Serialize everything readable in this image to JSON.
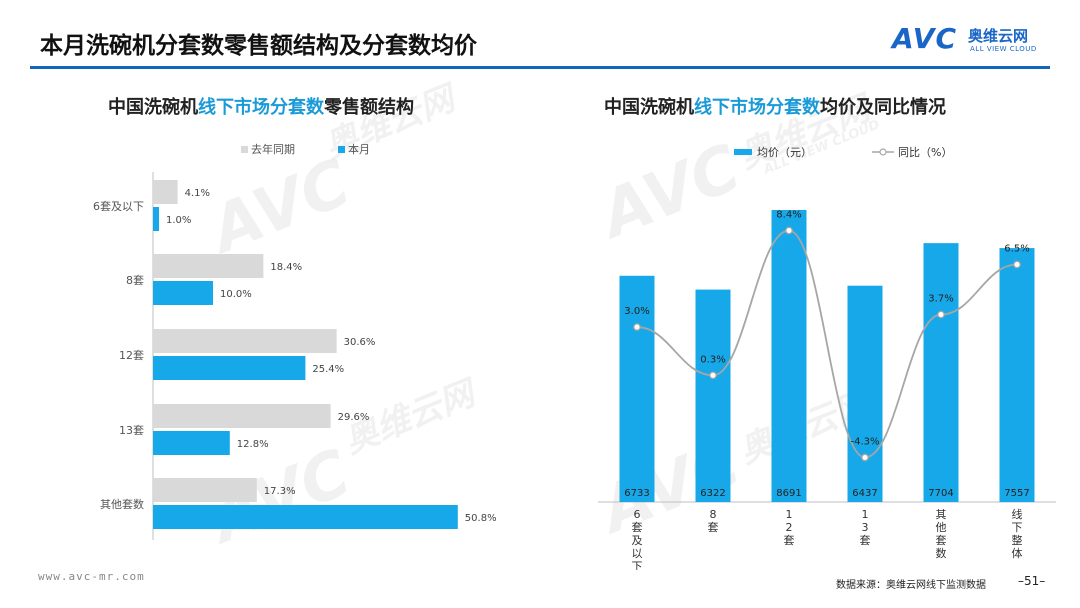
{
  "page": {
    "title": "本月洗碗机分套数零售额结构及分套数均价",
    "footer_url": "www.avc-mr.com",
    "footer_source": "数据来源：奥维云网线下监测数据",
    "page_number": "–51–"
  },
  "logo": {
    "mark": "AVC",
    "name_cn": "奥维云网",
    "name_en": "ALL VIEW CLOUD"
  },
  "watermark": {
    "mark": "AVC",
    "name_cn": "奥维云网",
    "name_en": "ALL VIEW CLOUD"
  },
  "left_title": {
    "part1": "中国洗碗机",
    "part2": "线下市场分套数",
    "part3": "零售额结构"
  },
  "right_title": {
    "part1": "中国洗碗机",
    "part2": "线下市场分套数",
    "part3": "均价及同比情况"
  },
  "colors": {
    "blue": "#16a8e8",
    "gray": "#d9d9d9",
    "line": "#a6a6a6",
    "accent": "#1565c0"
  },
  "chart_data": [
    {
      "type": "bar",
      "orientation": "horizontal",
      "categories": [
        "6套及以下",
        "8套",
        "12套",
        "13套",
        "其他套数"
      ],
      "series": [
        {
          "name": "去年同期",
          "values": [
            4.1,
            18.4,
            30.6,
            29.6,
            17.3
          ],
          "labels": [
            "4.1%",
            "18.4%",
            "30.6%",
            "29.6%",
            "17.3%"
          ],
          "color": "#d9d9d9"
        },
        {
          "name": "本月",
          "values": [
            1.0,
            10.0,
            25.4,
            12.8,
            50.8
          ],
          "labels": [
            "1.0%",
            "10.0%",
            "25.4%",
            "12.8%",
            "50.8%"
          ],
          "color": "#16a8e8"
        }
      ],
      "xlim": [
        0,
        55
      ],
      "legend": "top"
    },
    {
      "type": "bar+line",
      "categories": [
        "6套及以下",
        "8套",
        "12套",
        "13套",
        "其他套数",
        "线下整体"
      ],
      "series": [
        {
          "name": "均价（元）",
          "type": "bar",
          "values": [
            6733,
            6322,
            8691,
            6437,
            7704,
            7557
          ],
          "labels": [
            "6733",
            "6322",
            "8691",
            "6437",
            "7704",
            "7557"
          ],
          "color": "#16a8e8"
        },
        {
          "name": "同比（%）",
          "type": "line",
          "values": [
            3.0,
            0.3,
            8.4,
            -4.3,
            3.7,
            6.5
          ],
          "labels": [
            "3.0%",
            "0.3%",
            "8.4%",
            "-4.3%",
            "3.7%",
            "6.5%"
          ],
          "color": "#a6a6a6"
        }
      ],
      "bar_ylim": [
        0,
        10000
      ],
      "line_ylim": [
        -5,
        10
      ],
      "legend": "top"
    }
  ]
}
